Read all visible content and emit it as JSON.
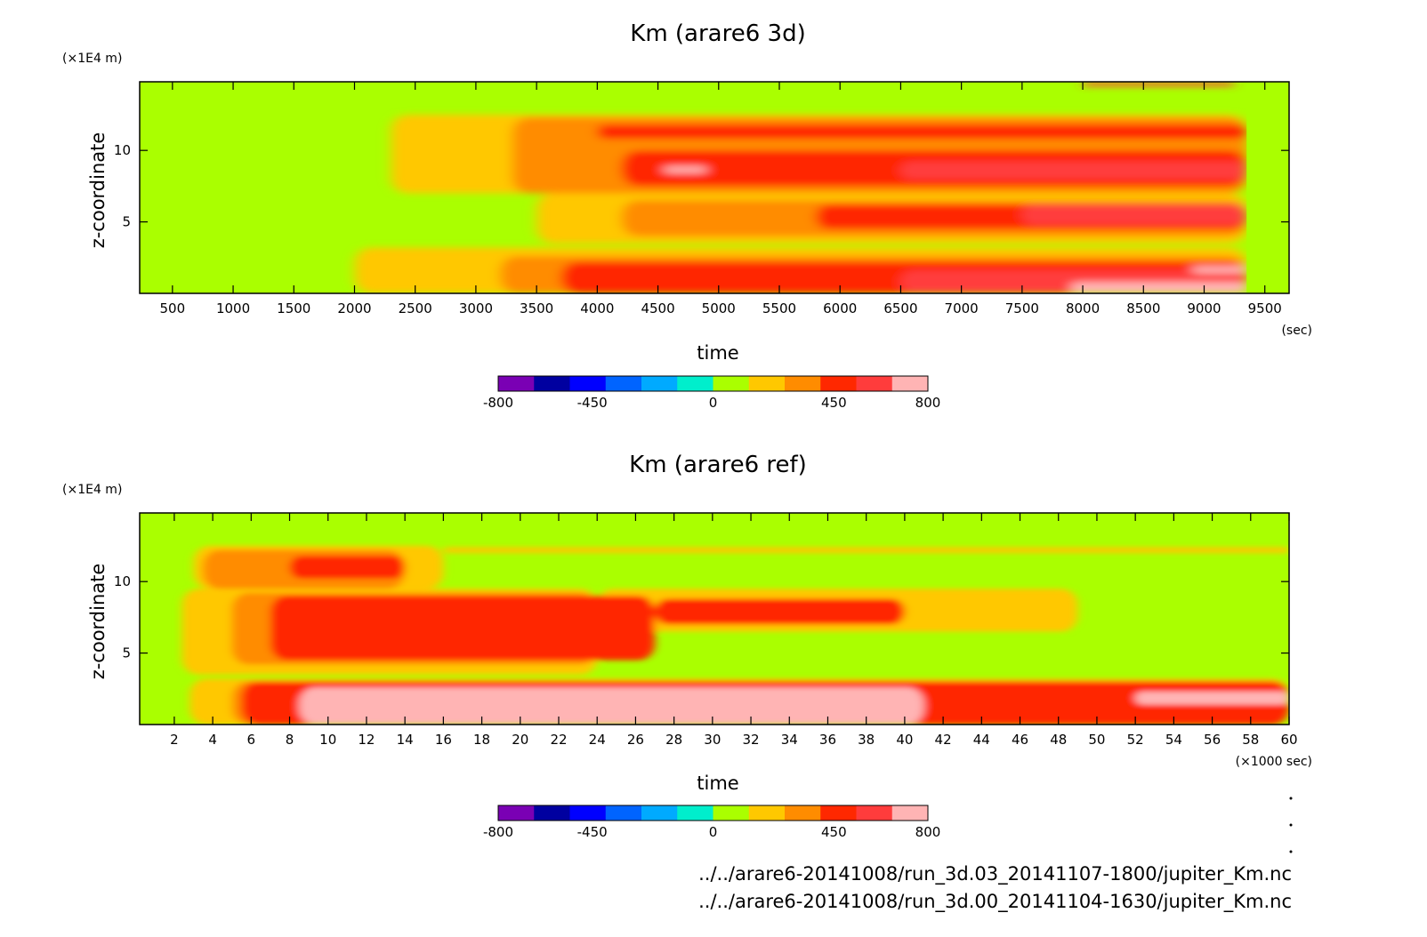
{
  "colorbar": {
    "labels": [
      "-800",
      "-450",
      "0",
      "450",
      "800"
    ],
    "label_values": [
      -800,
      -450,
      0,
      450,
      800
    ],
    "range": [
      -800,
      800
    ],
    "colors": [
      "#7a00b4",
      "#0000a0",
      "#0000ff",
      "#0064ff",
      "#00aaff",
      "#00eecc",
      "#aaff00",
      "#ffc800",
      "#ff8c00",
      "#ff2800",
      "#ff3c3c",
      "#ffb4b4"
    ]
  },
  "chart_data": [
    {
      "type": "heatmap",
      "title": "Km (arare6 3d)",
      "xlabel": "time",
      "ylabel": "z-coordinate",
      "x_unit": "(sec)",
      "y_unit": "(×1E4 m)",
      "xlim": [
        230,
        9700
      ],
      "ylim": [
        0,
        14.8
      ],
      "x_ticks": [
        500,
        1000,
        1500,
        2000,
        2500,
        3000,
        3500,
        4000,
        4500,
        5000,
        5500,
        6000,
        6500,
        7000,
        7500,
        8000,
        8500,
        9000,
        9500
      ],
      "x_tick_labels": [
        "500",
        "1000",
        "1500",
        "2000",
        "2500",
        "3000",
        "3500",
        "4000",
        "4500",
        "5000",
        "5500",
        "6000",
        "6500",
        "7000",
        "7500",
        "8000",
        "8500",
        "9000",
        "9500"
      ],
      "y_ticks": [
        5,
        10
      ],
      "y_tick_labels": [
        "5",
        "10"
      ],
      "x_end": 9350,
      "background_value": 50,
      "regions": [
        {
          "value": 200,
          "x": [
            2000,
            9350
          ],
          "y": [
            0.0,
            3.2
          ]
        },
        {
          "value": 200,
          "x": [
            3500,
            9350
          ],
          "y": [
            3.5,
            7.0
          ]
        },
        {
          "value": 200,
          "x": [
            2300,
            9350
          ],
          "y": [
            7.0,
            12.5
          ]
        },
        {
          "value": 350,
          "x": [
            3200,
            9350
          ],
          "y": [
            0.0,
            2.6
          ]
        },
        {
          "value": 350,
          "x": [
            4200,
            9350
          ],
          "y": [
            4.0,
            6.5
          ]
        },
        {
          "value": 350,
          "x": [
            3300,
            9350
          ],
          "y": [
            7.0,
            12.3
          ]
        },
        {
          "value": 500,
          "x": [
            3700,
            9350
          ],
          "y": [
            0.0,
            2.2
          ]
        },
        {
          "value": 500,
          "x": [
            5800,
            9350
          ],
          "y": [
            4.5,
            6.2
          ]
        },
        {
          "value": 500,
          "x": [
            4200,
            9350
          ],
          "y": [
            7.5,
            10.0
          ]
        },
        {
          "value": 500,
          "x": [
            4000,
            9350
          ],
          "y": [
            10.8,
            11.8
          ]
        },
        {
          "value": 650,
          "x": [
            6500,
            9350
          ],
          "y": [
            0.0,
            1.6
          ]
        },
        {
          "value": 650,
          "x": [
            7500,
            9350
          ],
          "y": [
            4.8,
            6.2
          ]
        },
        {
          "value": 650,
          "x": [
            6500,
            9350
          ],
          "y": [
            8.0,
            9.2
          ]
        },
        {
          "value": 750,
          "x": [
            7900,
            9350
          ],
          "y": [
            0.0,
            0.8
          ]
        },
        {
          "value": 750,
          "x": [
            8900,
            9350
          ],
          "y": [
            1.4,
            1.9
          ]
        },
        {
          "value": 750,
          "x": [
            4550,
            4900
          ],
          "y": [
            8.4,
            8.9
          ]
        },
        {
          "value": 650,
          "x": [
            8000,
            9250
          ],
          "y": [
            14.5,
            14.8
          ]
        }
      ]
    },
    {
      "type": "heatmap",
      "title": "Km (arare6 ref)",
      "xlabel": "time",
      "ylabel": "z-coordinate",
      "x_unit": "(×1000 sec)",
      "y_unit": "(×1E4 m)",
      "xlim": [
        0.2,
        60
      ],
      "ylim": [
        0,
        14.8
      ],
      "x_ticks": [
        2,
        4,
        6,
        8,
        10,
        12,
        14,
        16,
        18,
        20,
        22,
        24,
        26,
        28,
        30,
        32,
        34,
        36,
        38,
        40,
        42,
        44,
        46,
        48,
        50,
        52,
        54,
        56,
        58,
        60
      ],
      "x_tick_labels": [
        "2",
        "4",
        "6",
        "8",
        "10",
        "12",
        "14",
        "16",
        "18",
        "20",
        "22",
        "24",
        "26",
        "28",
        "30",
        "32",
        "34",
        "36",
        "38",
        "40",
        "42",
        "44",
        "46",
        "48",
        "50",
        "52",
        "54",
        "56",
        "58",
        "60"
      ],
      "y_ticks": [
        5,
        10
      ],
      "y_tick_labels": [
        "5",
        "10"
      ],
      "x_end": 60,
      "background_value": 50,
      "regions": [
        {
          "value": 200,
          "x": [
            2.8,
            60
          ],
          "y": [
            0.0,
            3.2
          ]
        },
        {
          "value": 200,
          "x": [
            2.4,
            24
          ],
          "y": [
            3.5,
            9.5
          ]
        },
        {
          "value": 200,
          "x": [
            3.0,
            16
          ],
          "y": [
            9.5,
            12.5
          ]
        },
        {
          "value": 200,
          "x": [
            24,
            49
          ],
          "y": [
            6.5,
            9.5
          ]
        },
        {
          "value": 350,
          "x": [
            5.0,
            60
          ],
          "y": [
            0.0,
            3.0
          ]
        },
        {
          "value": 350,
          "x": [
            5.0,
            24
          ],
          "y": [
            4.2,
            9.2
          ]
        },
        {
          "value": 350,
          "x": [
            3.5,
            14
          ],
          "y": [
            9.5,
            12.2
          ]
        },
        {
          "value": 500,
          "x": [
            5.5,
            60
          ],
          "y": [
            0.0,
            3.0
          ]
        },
        {
          "value": 500,
          "x": [
            7.0,
            27
          ],
          "y": [
            4.5,
            9.0
          ]
        },
        {
          "value": 500,
          "x": [
            27,
            40
          ],
          "y": [
            7.0,
            8.8
          ]
        },
        {
          "value": 500,
          "x": [
            8.0,
            14
          ],
          "y": [
            10.2,
            11.8
          ]
        },
        {
          "value": 750,
          "x": [
            8.5,
            41
          ],
          "y": [
            0.0,
            2.6
          ]
        },
        {
          "value": 750,
          "x": [
            52,
            60
          ],
          "y": [
            1.4,
            2.3
          ]
        },
        {
          "value": 200,
          "x": [
            16,
            60
          ],
          "y": [
            12.0,
            12.4
          ]
        }
      ]
    }
  ],
  "footer": {
    "path1": "../../arare6-20141008/run_3d.03_20141107-1800/jupiter_Km.nc",
    "path2": "../../arare6-20141008/run_3d.00_20141104-1630/jupiter_Km.nc"
  }
}
